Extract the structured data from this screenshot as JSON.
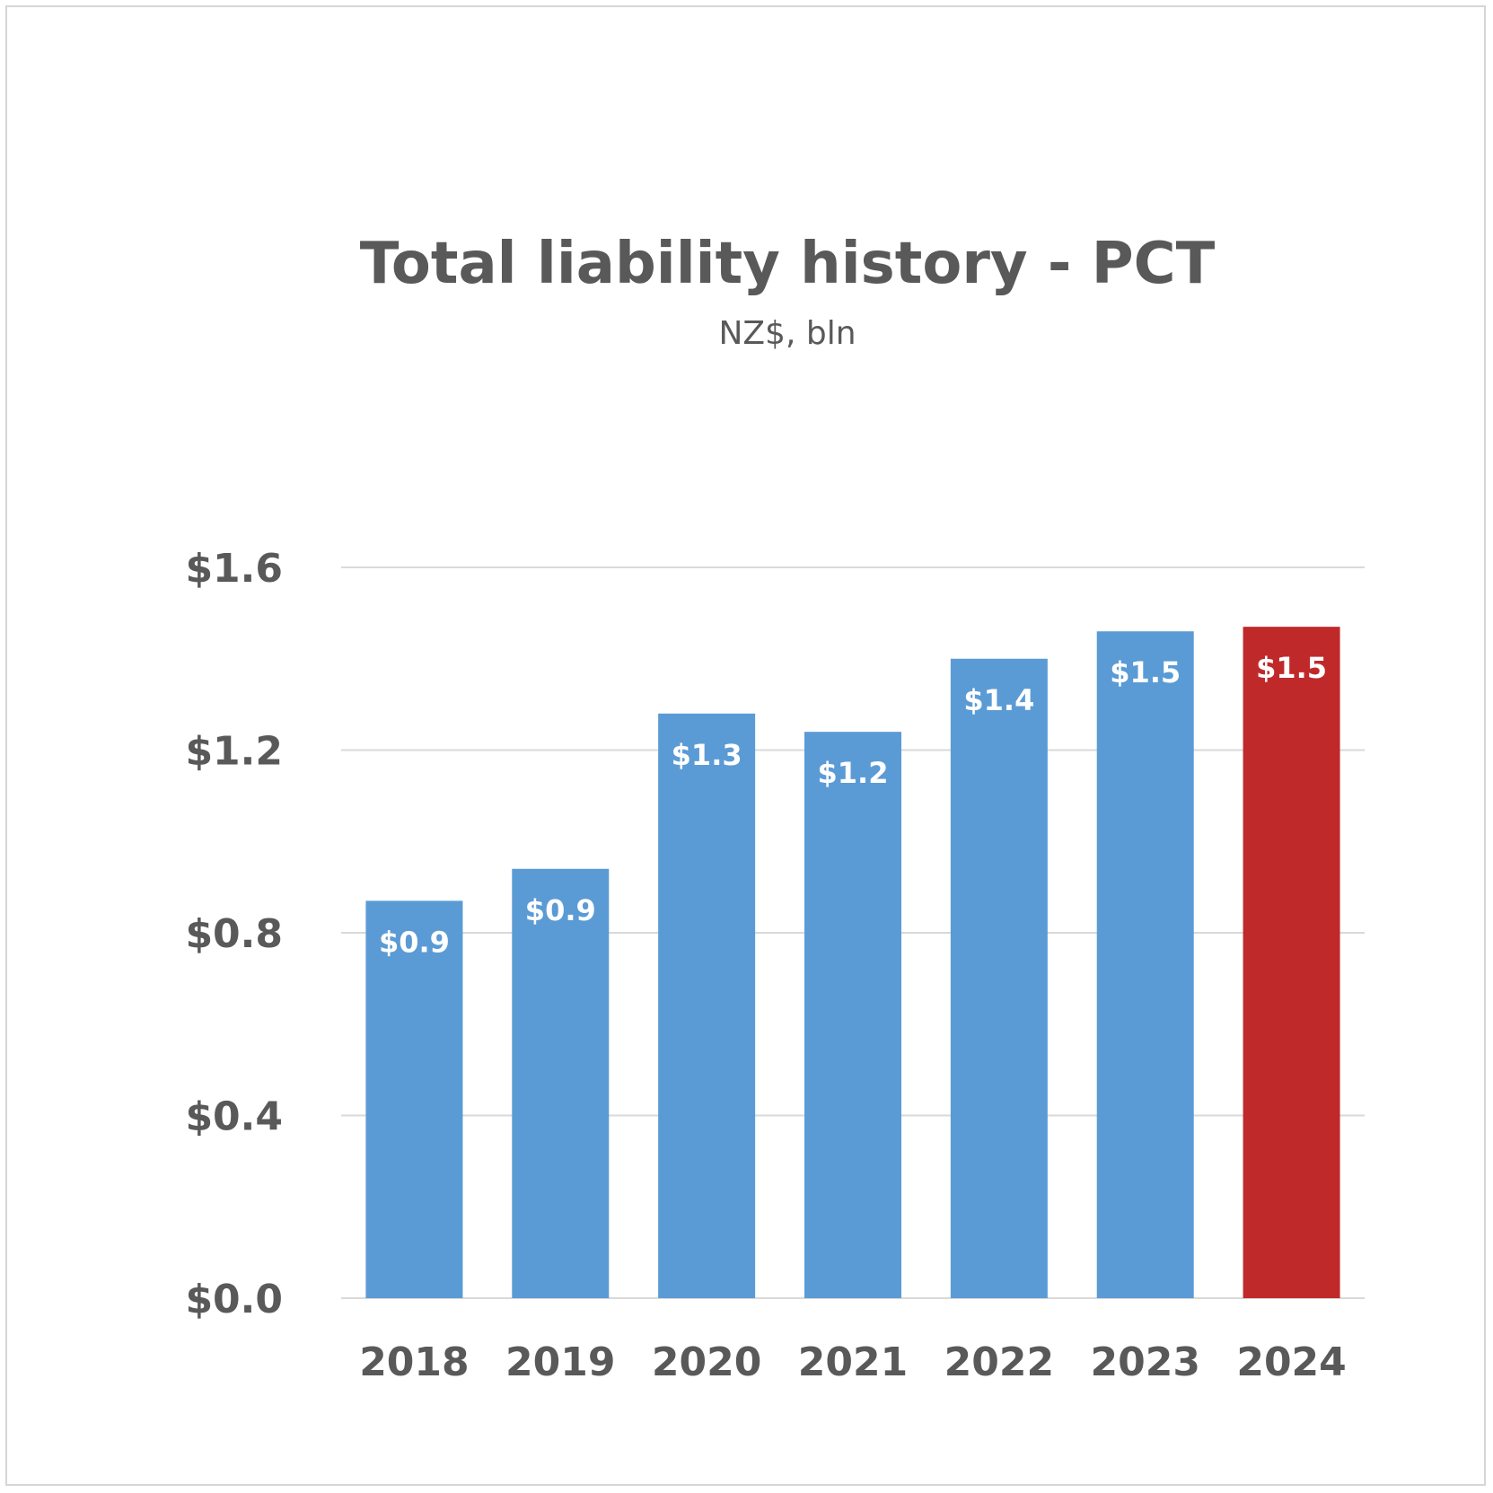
{
  "chart_data": {
    "type": "bar",
    "title": "Total liability history - PCT",
    "subtitle": "NZ$, bln",
    "categories": [
      "2018",
      "2019",
      "2020",
      "2021",
      "2022",
      "2023",
      "2024"
    ],
    "values": [
      0.87,
      0.94,
      1.28,
      1.24,
      1.4,
      1.46,
      1.47
    ],
    "data_labels": [
      "$0.9",
      "$0.9",
      "$1.3",
      "$1.2",
      "$1.4",
      "$1.5",
      "$1.5"
    ],
    "ylim": [
      0,
      1.6
    ],
    "yticks": [
      0.0,
      0.4,
      0.8,
      1.2,
      1.6
    ],
    "ytick_labels": [
      "$0.0",
      "$0.4",
      "$0.8",
      "$1.2",
      "$1.6"
    ],
    "grid": true,
    "colors": {
      "default_bar": "#5b9bd5",
      "highlight_bar": "#c0292a",
      "highlight_index": 6
    }
  }
}
